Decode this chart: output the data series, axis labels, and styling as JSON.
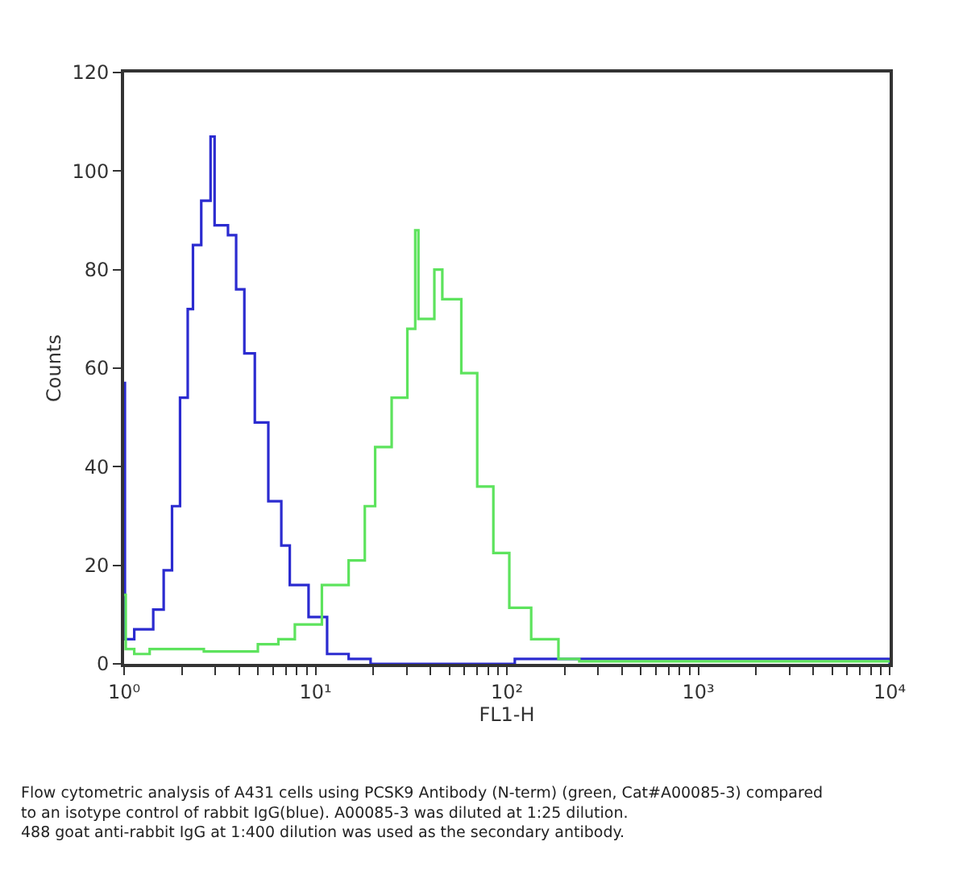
{
  "chart_data": {
    "type": "step",
    "xlabel": "FL1-H",
    "ylabel": "Counts",
    "xlim": [
      1,
      10000
    ],
    "log": "x",
    "xticks": [
      {
        "value": 1,
        "label": "10⁰"
      },
      {
        "value": 10,
        "label": "10¹"
      },
      {
        "value": 100,
        "label": "10²"
      },
      {
        "value": 1000,
        "label": "10³"
      },
      {
        "value": 10000,
        "label": "10⁴"
      },
      {
        "value": 2,
        "label": null
      },
      {
        "value": 3,
        "label": null
      },
      {
        "value": 4,
        "label": null
      },
      {
        "value": 5,
        "label": null
      },
      {
        "value": 6,
        "label": null
      },
      {
        "value": 7,
        "label": null
      },
      {
        "value": 8,
        "label": null
      },
      {
        "value": 9,
        "label": null
      },
      {
        "value": 20,
        "label": null
      },
      {
        "value": 30,
        "label": null
      },
      {
        "value": 40,
        "label": null
      },
      {
        "value": 50,
        "label": null
      },
      {
        "value": 60,
        "label": null
      },
      {
        "value": 70,
        "label": null
      },
      {
        "value": 80,
        "label": null
      },
      {
        "value": 90,
        "label": null
      },
      {
        "value": 200,
        "label": null
      },
      {
        "value": 300,
        "label": null
      },
      {
        "value": 400,
        "label": null
      },
      {
        "value": 500,
        "label": null
      },
      {
        "value": 600,
        "label": null
      },
      {
        "value": 700,
        "label": null
      },
      {
        "value": 800,
        "label": null
      },
      {
        "value": 900,
        "label": null
      },
      {
        "value": 2000,
        "label": null
      },
      {
        "value": 3000,
        "label": null
      },
      {
        "value": 4000,
        "label": null
      },
      {
        "value": 5000,
        "label": null
      },
      {
        "value": 6000,
        "label": null
      },
      {
        "value": 7000,
        "label": null
      },
      {
        "value": 8000,
        "label": null
      },
      {
        "value": 9000,
        "label": null
      }
    ],
    "ylim": [
      0,
      120
    ],
    "yticks": [
      0,
      20,
      40,
      60,
      80,
      100,
      120
    ],
    "series": [
      {
        "color": "#2b2bd0",
        "x": [
          1,
          1.01,
          1.13,
          1.42,
          1.61,
          1.78,
          1.96,
          2.15,
          2.29,
          2.53,
          2.83,
          2.97,
          3.49,
          3.85,
          4.25,
          4.82,
          5.67,
          6.63,
          7.34,
          9.2,
          11.5,
          14.9,
          19.4,
          100,
          110,
          10000
        ],
        "values": [
          57,
          5,
          7,
          11,
          19,
          32,
          54,
          72,
          85,
          94,
          107,
          89,
          87,
          76,
          63,
          49,
          33,
          24,
          16,
          9.5,
          2,
          1,
          0,
          0,
          1,
          0
        ]
      },
      {
        "color": "#5de35d",
        "x": [
          1,
          1.02,
          1.13,
          1.36,
          2.61,
          5.0,
          6.4,
          7.8,
          10.8,
          14.9,
          18.1,
          20.5,
          25,
          30.2,
          33.2,
          34.5,
          41.8,
          46,
          57.8,
          70,
          85,
          103,
          134,
          186,
          239,
          10000
        ],
        "values": [
          14,
          3,
          2,
          3,
          2.5,
          4,
          5,
          8,
          16,
          21,
          32,
          44,
          54,
          68,
          88,
          70,
          80,
          74,
          59,
          36,
          22.5,
          11.4,
          5,
          1,
          0.5,
          0.5
        ]
      }
    ],
    "annotations": [
      "Flow cytometric analysis of A431 cells using PCSK9 Antibody (N-term) (green, Cat#A00085-3) compared\nto an isotype control of rabbit IgG(blue). A00085-3 was diluted at 1:25 dilution.\n488 goat anti-rabbit IgG at 1:400 dilution was used as the secondary antibody."
    ]
  }
}
